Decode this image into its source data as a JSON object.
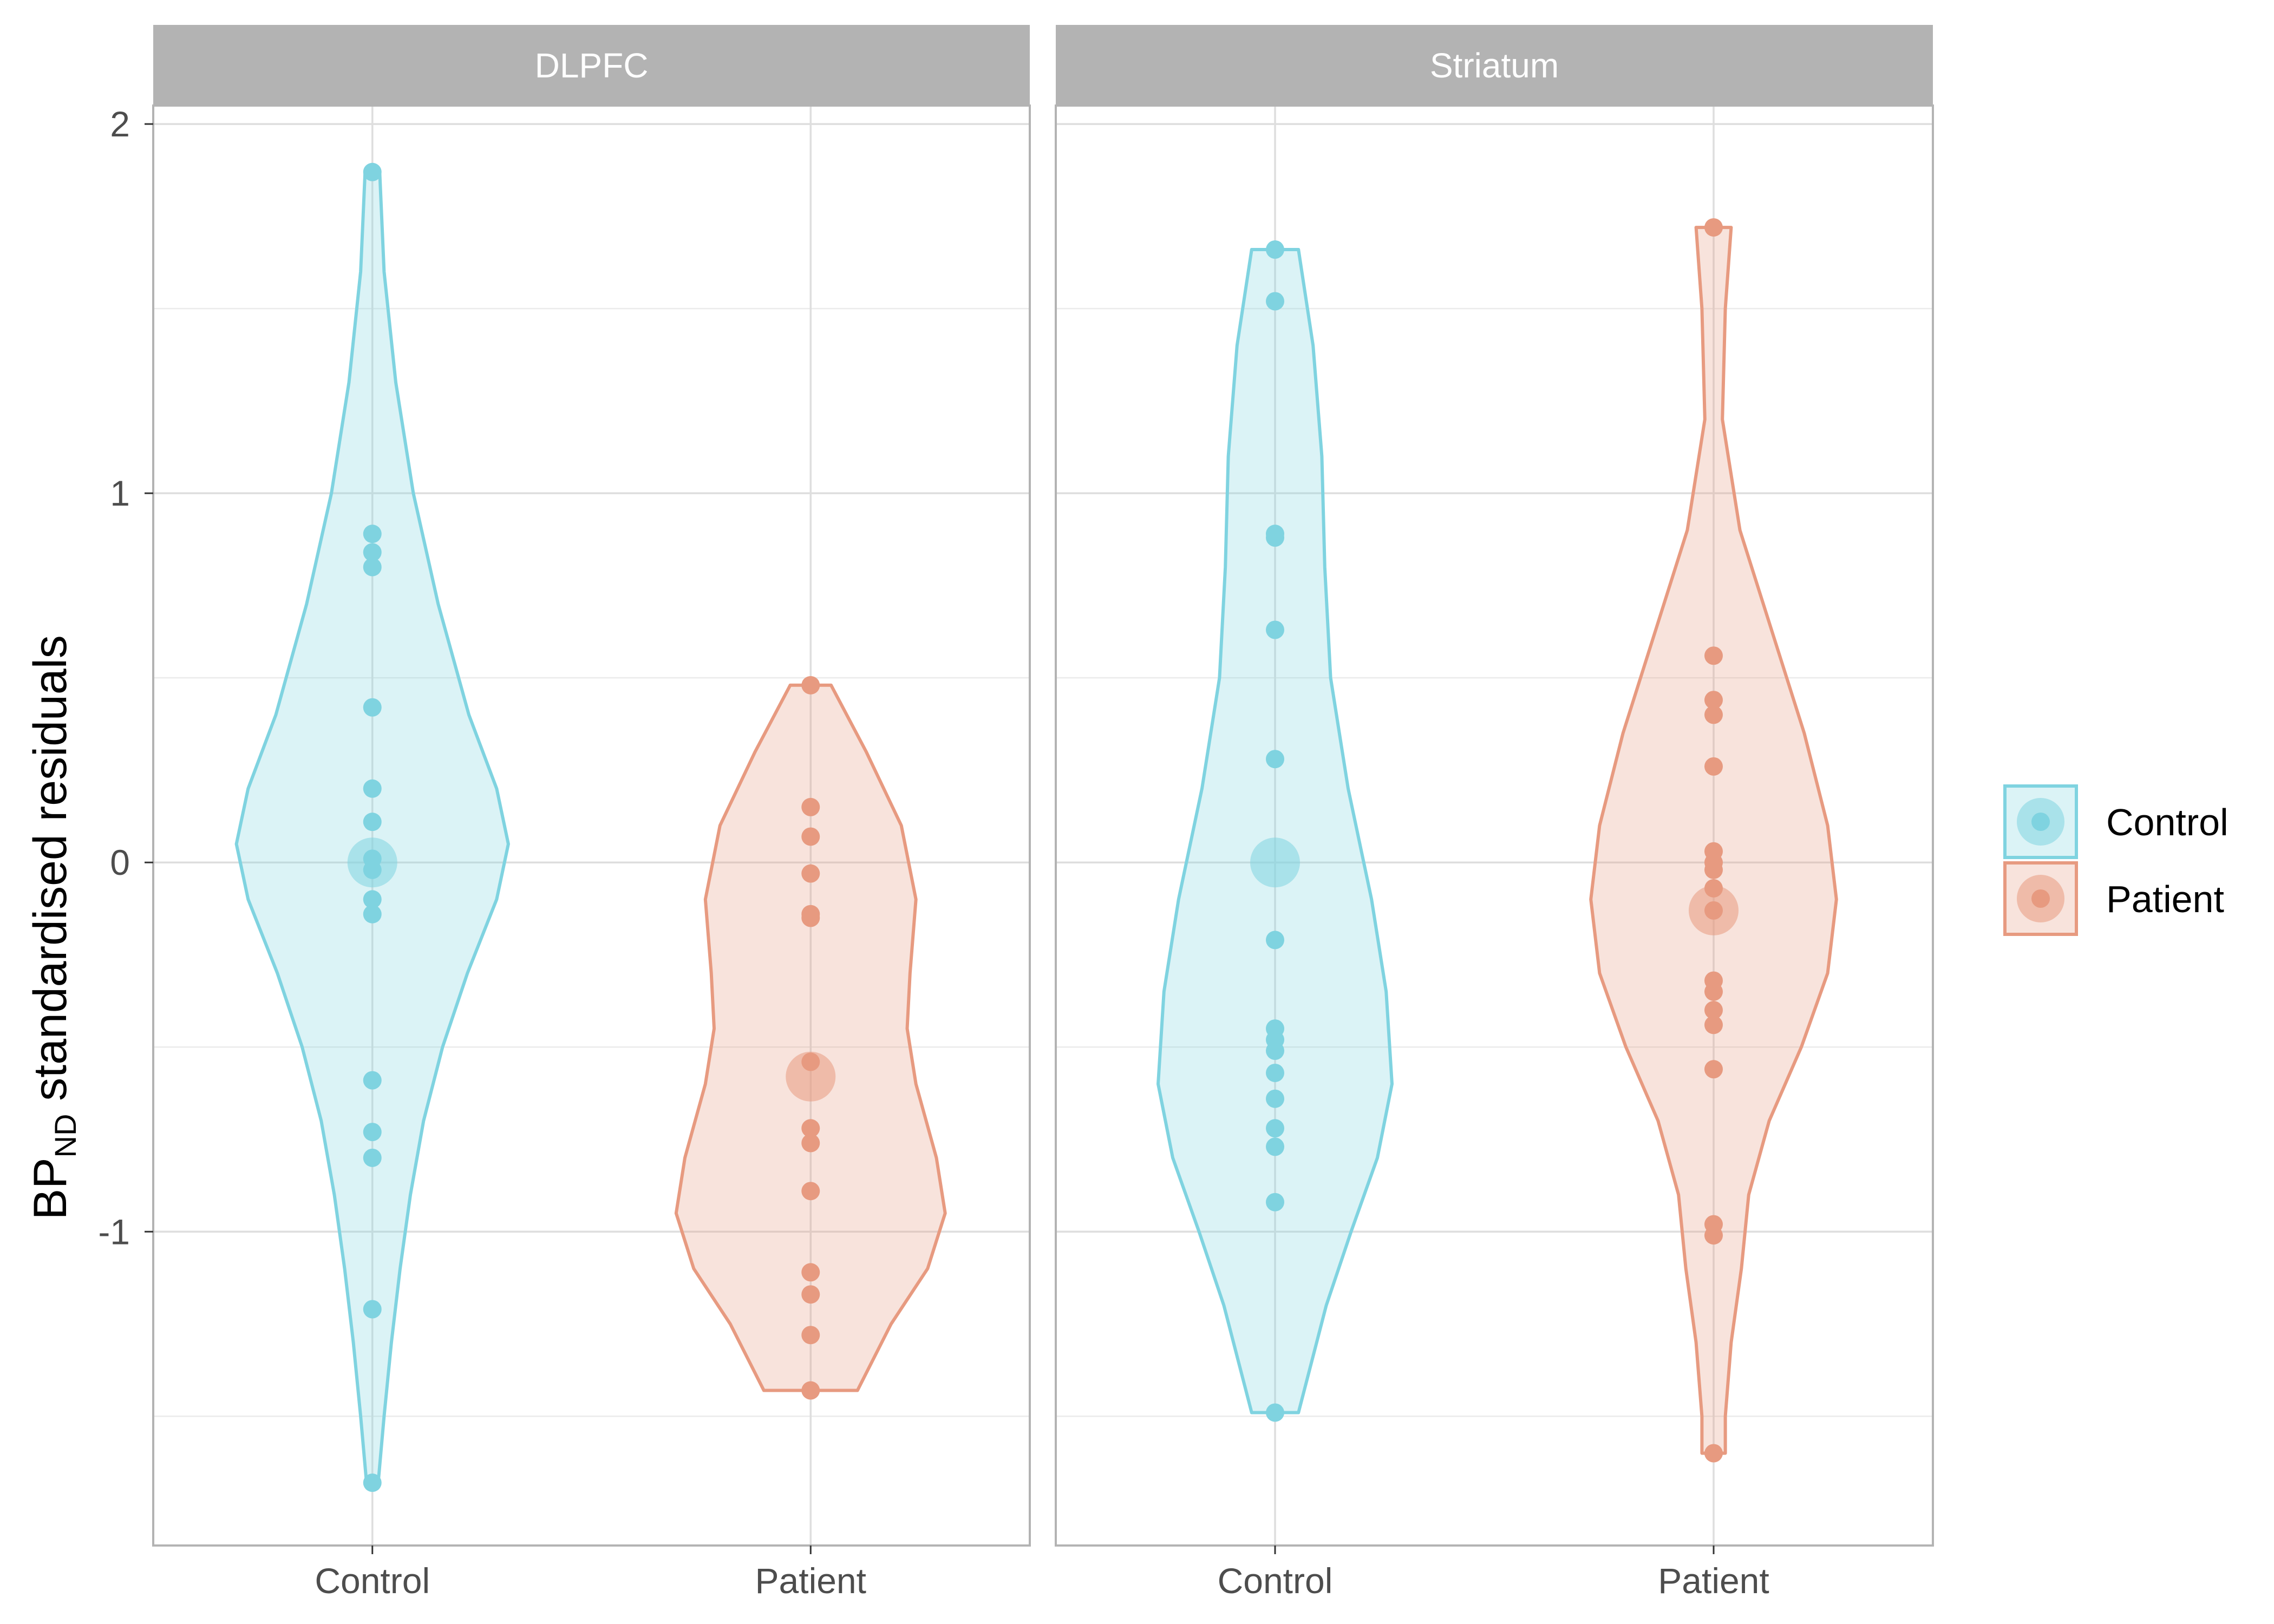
{
  "chart_data": {
    "type": "violin",
    "ylabel": {
      "main": "BP",
      "subscript": "ND",
      "rest": " standardised residuals"
    },
    "y_ticks": [
      -1,
      0,
      1,
      2
    ],
    "y_tick_labels": [
      "-1",
      "0",
      "1",
      "2"
    ],
    "ylim": [
      -1.85,
      2.05
    ],
    "grid": true,
    "legend_position": "right",
    "groups": [
      {
        "name": "Control",
        "color": "#7fd3e0"
      },
      {
        "name": "Patient",
        "color": "#e79a80"
      }
    ],
    "categories": [
      "Control",
      "Patient"
    ],
    "panels": [
      {
        "title": "DLPFC",
        "violins": [
          {
            "group": "Control",
            "mean": 0.0,
            "points": [
              1.87,
              0.89,
              0.84,
              0.8,
              0.42,
              0.2,
              0.11,
              0.01,
              -0.02,
              -0.1,
              -0.14,
              -0.59,
              -0.73,
              -0.8,
              -1.21,
              -1.68
            ],
            "density": [
              [
                1.87,
                0.05
              ],
              [
                1.6,
                0.08
              ],
              [
                1.3,
                0.16
              ],
              [
                1.0,
                0.28
              ],
              [
                0.7,
                0.45
              ],
              [
                0.4,
                0.66
              ],
              [
                0.2,
                0.85
              ],
              [
                0.05,
                0.93
              ],
              [
                -0.1,
                0.85
              ],
              [
                -0.3,
                0.65
              ],
              [
                -0.5,
                0.48
              ],
              [
                -0.7,
                0.35
              ],
              [
                -0.9,
                0.26
              ],
              [
                -1.1,
                0.19
              ],
              [
                -1.3,
                0.13
              ],
              [
                -1.5,
                0.08
              ],
              [
                -1.68,
                0.04
              ]
            ]
          },
          {
            "group": "Patient",
            "mean": -0.58,
            "points": [
              0.48,
              0.15,
              0.07,
              -0.03,
              -0.14,
              -0.15,
              -0.54,
              -0.72,
              -0.76,
              -0.89,
              -1.11,
              -1.17,
              -1.28,
              -1.43
            ],
            "density": [
              [
                0.48,
                0.14
              ],
              [
                0.3,
                0.38
              ],
              [
                0.1,
                0.62
              ],
              [
                -0.1,
                0.72
              ],
              [
                -0.3,
                0.68
              ],
              [
                -0.45,
                0.66
              ],
              [
                -0.6,
                0.72
              ],
              [
                -0.8,
                0.86
              ],
              [
                -0.95,
                0.92
              ],
              [
                -1.1,
                0.8
              ],
              [
                -1.25,
                0.55
              ],
              [
                -1.43,
                0.32
              ]
            ]
          }
        ]
      },
      {
        "title": "Striatum",
        "violins": [
          {
            "group": "Control",
            "mean": 0.0,
            "points": [
              1.66,
              1.52,
              0.89,
              0.88,
              0.63,
              0.28,
              -0.21,
              -0.45,
              -0.48,
              -0.51,
              -0.57,
              -0.64,
              -0.72,
              -0.77,
              -0.92,
              -1.49
            ],
            "density": [
              [
                1.66,
                0.16
              ],
              [
                1.4,
                0.26
              ],
              [
                1.1,
                0.32
              ],
              [
                0.8,
                0.34
              ],
              [
                0.5,
                0.38
              ],
              [
                0.2,
                0.5
              ],
              [
                -0.1,
                0.66
              ],
              [
                -0.35,
                0.76
              ],
              [
                -0.6,
                0.8
              ],
              [
                -0.8,
                0.7
              ],
              [
                -1.0,
                0.52
              ],
              [
                -1.2,
                0.35
              ],
              [
                -1.49,
                0.16
              ]
            ]
          },
          {
            "group": "Patient",
            "mean": -0.13,
            "points": [
              1.72,
              0.56,
              0.44,
              0.4,
              0.26,
              0.03,
              0.0,
              -0.02,
              -0.07,
              -0.13,
              -0.32,
              -0.35,
              -0.4,
              -0.44,
              -0.56,
              -0.98,
              -1.01,
              -1.6
            ],
            "density": [
              [
                1.72,
                0.12
              ],
              [
                1.5,
                0.08
              ],
              [
                1.2,
                0.06
              ],
              [
                0.9,
                0.18
              ],
              [
                0.6,
                0.42
              ],
              [
                0.35,
                0.62
              ],
              [
                0.1,
                0.78
              ],
              [
                -0.1,
                0.84
              ],
              [
                -0.3,
                0.78
              ],
              [
                -0.5,
                0.6
              ],
              [
                -0.7,
                0.38
              ],
              [
                -0.9,
                0.24
              ],
              [
                -1.1,
                0.19
              ],
              [
                -1.3,
                0.12
              ],
              [
                -1.5,
                0.08
              ],
              [
                -1.6,
                0.08
              ]
            ]
          }
        ]
      }
    ]
  }
}
